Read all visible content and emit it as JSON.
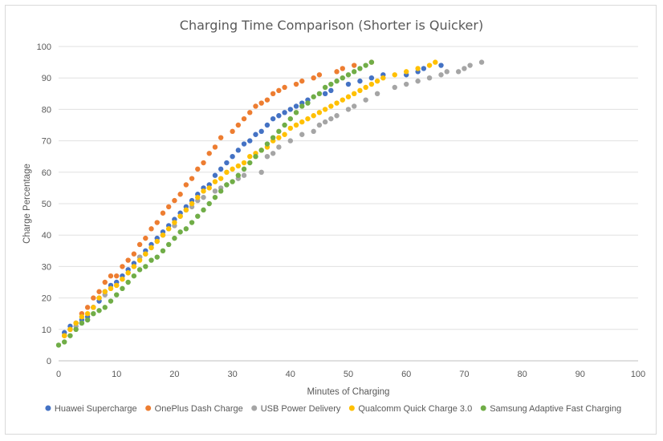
{
  "chart_data": {
    "type": "scatter",
    "title": "Charging Time Comparison (Shorter is Quicker)",
    "xlabel": "Minutes of Charging",
    "ylabel": "Charge Percentage",
    "xlim": [
      0,
      100
    ],
    "ylim": [
      0,
      100
    ],
    "xticks": [
      "0",
      "10",
      "20",
      "30",
      "40",
      "50",
      "60",
      "70",
      "80",
      "90",
      "100"
    ],
    "yticks": [
      "0",
      "10",
      "20",
      "30",
      "40",
      "50",
      "60",
      "70",
      "80",
      "90",
      "100"
    ],
    "grid": true,
    "legend": "bottom",
    "series": [
      {
        "name": "Huawei Supercharge",
        "color": "#4472c4",
        "points": [
          [
            1,
            9
          ],
          [
            2,
            11
          ],
          [
            3,
            12
          ],
          [
            4,
            13
          ],
          [
            5,
            14
          ],
          [
            6,
            17
          ],
          [
            7,
            19
          ],
          [
            8,
            22
          ],
          [
            9,
            24
          ],
          [
            10,
            25
          ],
          [
            11,
            27
          ],
          [
            12,
            29
          ],
          [
            13,
            31
          ],
          [
            14,
            33
          ],
          [
            15,
            35
          ],
          [
            16,
            37
          ],
          [
            17,
            39
          ],
          [
            18,
            41
          ],
          [
            19,
            43
          ],
          [
            20,
            45
          ],
          [
            21,
            47
          ],
          [
            22,
            49
          ],
          [
            23,
            51
          ],
          [
            24,
            53
          ],
          [
            25,
            55
          ],
          [
            26,
            56
          ],
          [
            27,
            59
          ],
          [
            28,
            61
          ],
          [
            29,
            63
          ],
          [
            30,
            65
          ],
          [
            31,
            67
          ],
          [
            32,
            69
          ],
          [
            33,
            70
          ],
          [
            34,
            72
          ],
          [
            35,
            73
          ],
          [
            36,
            75
          ],
          [
            37,
            77
          ],
          [
            38,
            78
          ],
          [
            39,
            79
          ],
          [
            40,
            80
          ],
          [
            41,
            81
          ],
          [
            42,
            82
          ],
          [
            43,
            83
          ],
          [
            46,
            85
          ],
          [
            47,
            86
          ],
          [
            50,
            88
          ],
          [
            52,
            89
          ],
          [
            54,
            90
          ],
          [
            56,
            91
          ],
          [
            60,
            91
          ],
          [
            62,
            92
          ],
          [
            63,
            93
          ],
          [
            66,
            94
          ]
        ]
      },
      {
        "name": "OnePlus Dash Charge",
        "color": "#ed7d31",
        "points": [
          [
            1,
            8
          ],
          [
            2,
            10
          ],
          [
            3,
            12
          ],
          [
            4,
            15
          ],
          [
            5,
            17
          ],
          [
            6,
            20
          ],
          [
            7,
            22
          ],
          [
            8,
            25
          ],
          [
            9,
            27
          ],
          [
            10,
            27
          ],
          [
            11,
            30
          ],
          [
            12,
            32
          ],
          [
            13,
            34
          ],
          [
            14,
            37
          ],
          [
            15,
            39
          ],
          [
            16,
            42
          ],
          [
            17,
            44
          ],
          [
            18,
            47
          ],
          [
            19,
            49
          ],
          [
            20,
            51
          ],
          [
            21,
            53
          ],
          [
            22,
            56
          ],
          [
            23,
            58
          ],
          [
            24,
            61
          ],
          [
            25,
            63
          ],
          [
            26,
            66
          ],
          [
            27,
            68
          ],
          [
            28,
            71
          ],
          [
            30,
            73
          ],
          [
            31,
            75
          ],
          [
            32,
            77
          ],
          [
            33,
            79
          ],
          [
            34,
            81
          ],
          [
            35,
            82
          ],
          [
            36,
            83
          ],
          [
            37,
            85
          ],
          [
            38,
            86
          ],
          [
            39,
            87
          ],
          [
            41,
            88
          ],
          [
            42,
            89
          ],
          [
            44,
            90
          ],
          [
            45,
            91
          ],
          [
            48,
            92
          ],
          [
            49,
            93
          ],
          [
            51,
            94
          ],
          [
            54,
            95
          ]
        ]
      },
      {
        "name": "USB Power Delivery",
        "color": "#a5a5a5",
        "points": [
          [
            1,
            8
          ],
          [
            2,
            10
          ],
          [
            3,
            11
          ],
          [
            4,
            12
          ],
          [
            5,
            13
          ],
          [
            6,
            17
          ],
          [
            7,
            20
          ],
          [
            8,
            21
          ],
          [
            9,
            23
          ],
          [
            10,
            24
          ],
          [
            11,
            26
          ],
          [
            12,
            28
          ],
          [
            13,
            30
          ],
          [
            14,
            33
          ],
          [
            15,
            34
          ],
          [
            16,
            36
          ],
          [
            17,
            38
          ],
          [
            18,
            40
          ],
          [
            19,
            42
          ],
          [
            20,
            43
          ],
          [
            21,
            46
          ],
          [
            22,
            48
          ],
          [
            23,
            49
          ],
          [
            24,
            51
          ],
          [
            25,
            52
          ],
          [
            27,
            54
          ],
          [
            28,
            55
          ],
          [
            29,
            56
          ],
          [
            31,
            58
          ],
          [
            32,
            59
          ],
          [
            35,
            60
          ],
          [
            36,
            65
          ],
          [
            37,
            66
          ],
          [
            38,
            68
          ],
          [
            40,
            70
          ],
          [
            42,
            72
          ],
          [
            44,
            73
          ],
          [
            45,
            75
          ],
          [
            46,
            76
          ],
          [
            47,
            77
          ],
          [
            48,
            78
          ],
          [
            50,
            80
          ],
          [
            51,
            81
          ],
          [
            53,
            83
          ],
          [
            55,
            85
          ],
          [
            58,
            87
          ],
          [
            60,
            88
          ],
          [
            62,
            89
          ],
          [
            64,
            90
          ],
          [
            66,
            91
          ],
          [
            67,
            92
          ],
          [
            69,
            92
          ],
          [
            70,
            93
          ],
          [
            71,
            94
          ],
          [
            73,
            95
          ]
        ]
      },
      {
        "name": "Qualcomm Quick Charge 3.0",
        "color": "#ffc000",
        "points": [
          [
            1,
            8
          ],
          [
            2,
            10
          ],
          [
            3,
            12
          ],
          [
            4,
            14
          ],
          [
            5,
            15
          ],
          [
            6,
            17
          ],
          [
            7,
            20
          ],
          [
            8,
            22
          ],
          [
            9,
            23
          ],
          [
            10,
            24
          ],
          [
            11,
            26
          ],
          [
            12,
            28
          ],
          [
            13,
            30
          ],
          [
            14,
            32
          ],
          [
            15,
            34
          ],
          [
            16,
            36
          ],
          [
            17,
            38
          ],
          [
            18,
            40
          ],
          [
            19,
            42
          ],
          [
            20,
            44
          ],
          [
            21,
            46
          ],
          [
            22,
            48
          ],
          [
            23,
            50
          ],
          [
            24,
            52
          ],
          [
            25,
            54
          ],
          [
            26,
            55
          ],
          [
            27,
            57
          ],
          [
            28,
            58
          ],
          [
            29,
            60
          ],
          [
            30,
            61
          ],
          [
            31,
            62
          ],
          [
            32,
            63
          ],
          [
            33,
            65
          ],
          [
            34,
            66
          ],
          [
            35,
            67
          ],
          [
            36,
            68
          ],
          [
            37,
            70
          ],
          [
            38,
            71
          ],
          [
            39,
            72
          ],
          [
            40,
            74
          ],
          [
            41,
            75
          ],
          [
            42,
            76
          ],
          [
            43,
            77
          ],
          [
            44,
            78
          ],
          [
            45,
            79
          ],
          [
            46,
            80
          ],
          [
            47,
            81
          ],
          [
            48,
            82
          ],
          [
            49,
            83
          ],
          [
            50,
            84
          ],
          [
            51,
            85
          ],
          [
            52,
            86
          ],
          [
            53,
            87
          ],
          [
            54,
            88
          ],
          [
            55,
            89
          ],
          [
            56,
            90
          ],
          [
            58,
            91
          ],
          [
            60,
            92
          ],
          [
            62,
            93
          ],
          [
            64,
            94
          ],
          [
            65,
            95
          ]
        ]
      },
      {
        "name": "Samsung Adaptive Fast Charging",
        "color": "#70ad47",
        "points": [
          [
            0,
            5
          ],
          [
            1,
            6
          ],
          [
            2,
            8
          ],
          [
            3,
            10
          ],
          [
            4,
            12
          ],
          [
            5,
            13
          ],
          [
            6,
            15
          ],
          [
            7,
            16
          ],
          [
            8,
            17
          ],
          [
            9,
            19
          ],
          [
            10,
            21
          ],
          [
            11,
            23
          ],
          [
            12,
            25
          ],
          [
            13,
            27
          ],
          [
            14,
            29
          ],
          [
            15,
            30
          ],
          [
            16,
            32
          ],
          [
            17,
            33
          ],
          [
            18,
            35
          ],
          [
            19,
            37
          ],
          [
            20,
            39
          ],
          [
            21,
            41
          ],
          [
            22,
            42
          ],
          [
            23,
            44
          ],
          [
            24,
            46
          ],
          [
            25,
            48
          ],
          [
            26,
            50
          ],
          [
            27,
            52
          ],
          [
            28,
            54
          ],
          [
            29,
            56
          ],
          [
            30,
            57
          ],
          [
            31,
            59
          ],
          [
            32,
            61
          ],
          [
            33,
            63
          ],
          [
            34,
            65
          ],
          [
            35,
            67
          ],
          [
            36,
            69
          ],
          [
            37,
            71
          ],
          [
            38,
            73
          ],
          [
            39,
            75
          ],
          [
            40,
            77
          ],
          [
            41,
            79
          ],
          [
            42,
            81
          ],
          [
            43,
            82
          ],
          [
            44,
            84
          ],
          [
            45,
            85
          ],
          [
            46,
            87
          ],
          [
            47,
            88
          ],
          [
            48,
            89
          ],
          [
            49,
            90
          ],
          [
            50,
            91
          ],
          [
            51,
            92
          ],
          [
            52,
            93
          ],
          [
            53,
            94
          ],
          [
            54,
            95
          ]
        ]
      }
    ]
  }
}
